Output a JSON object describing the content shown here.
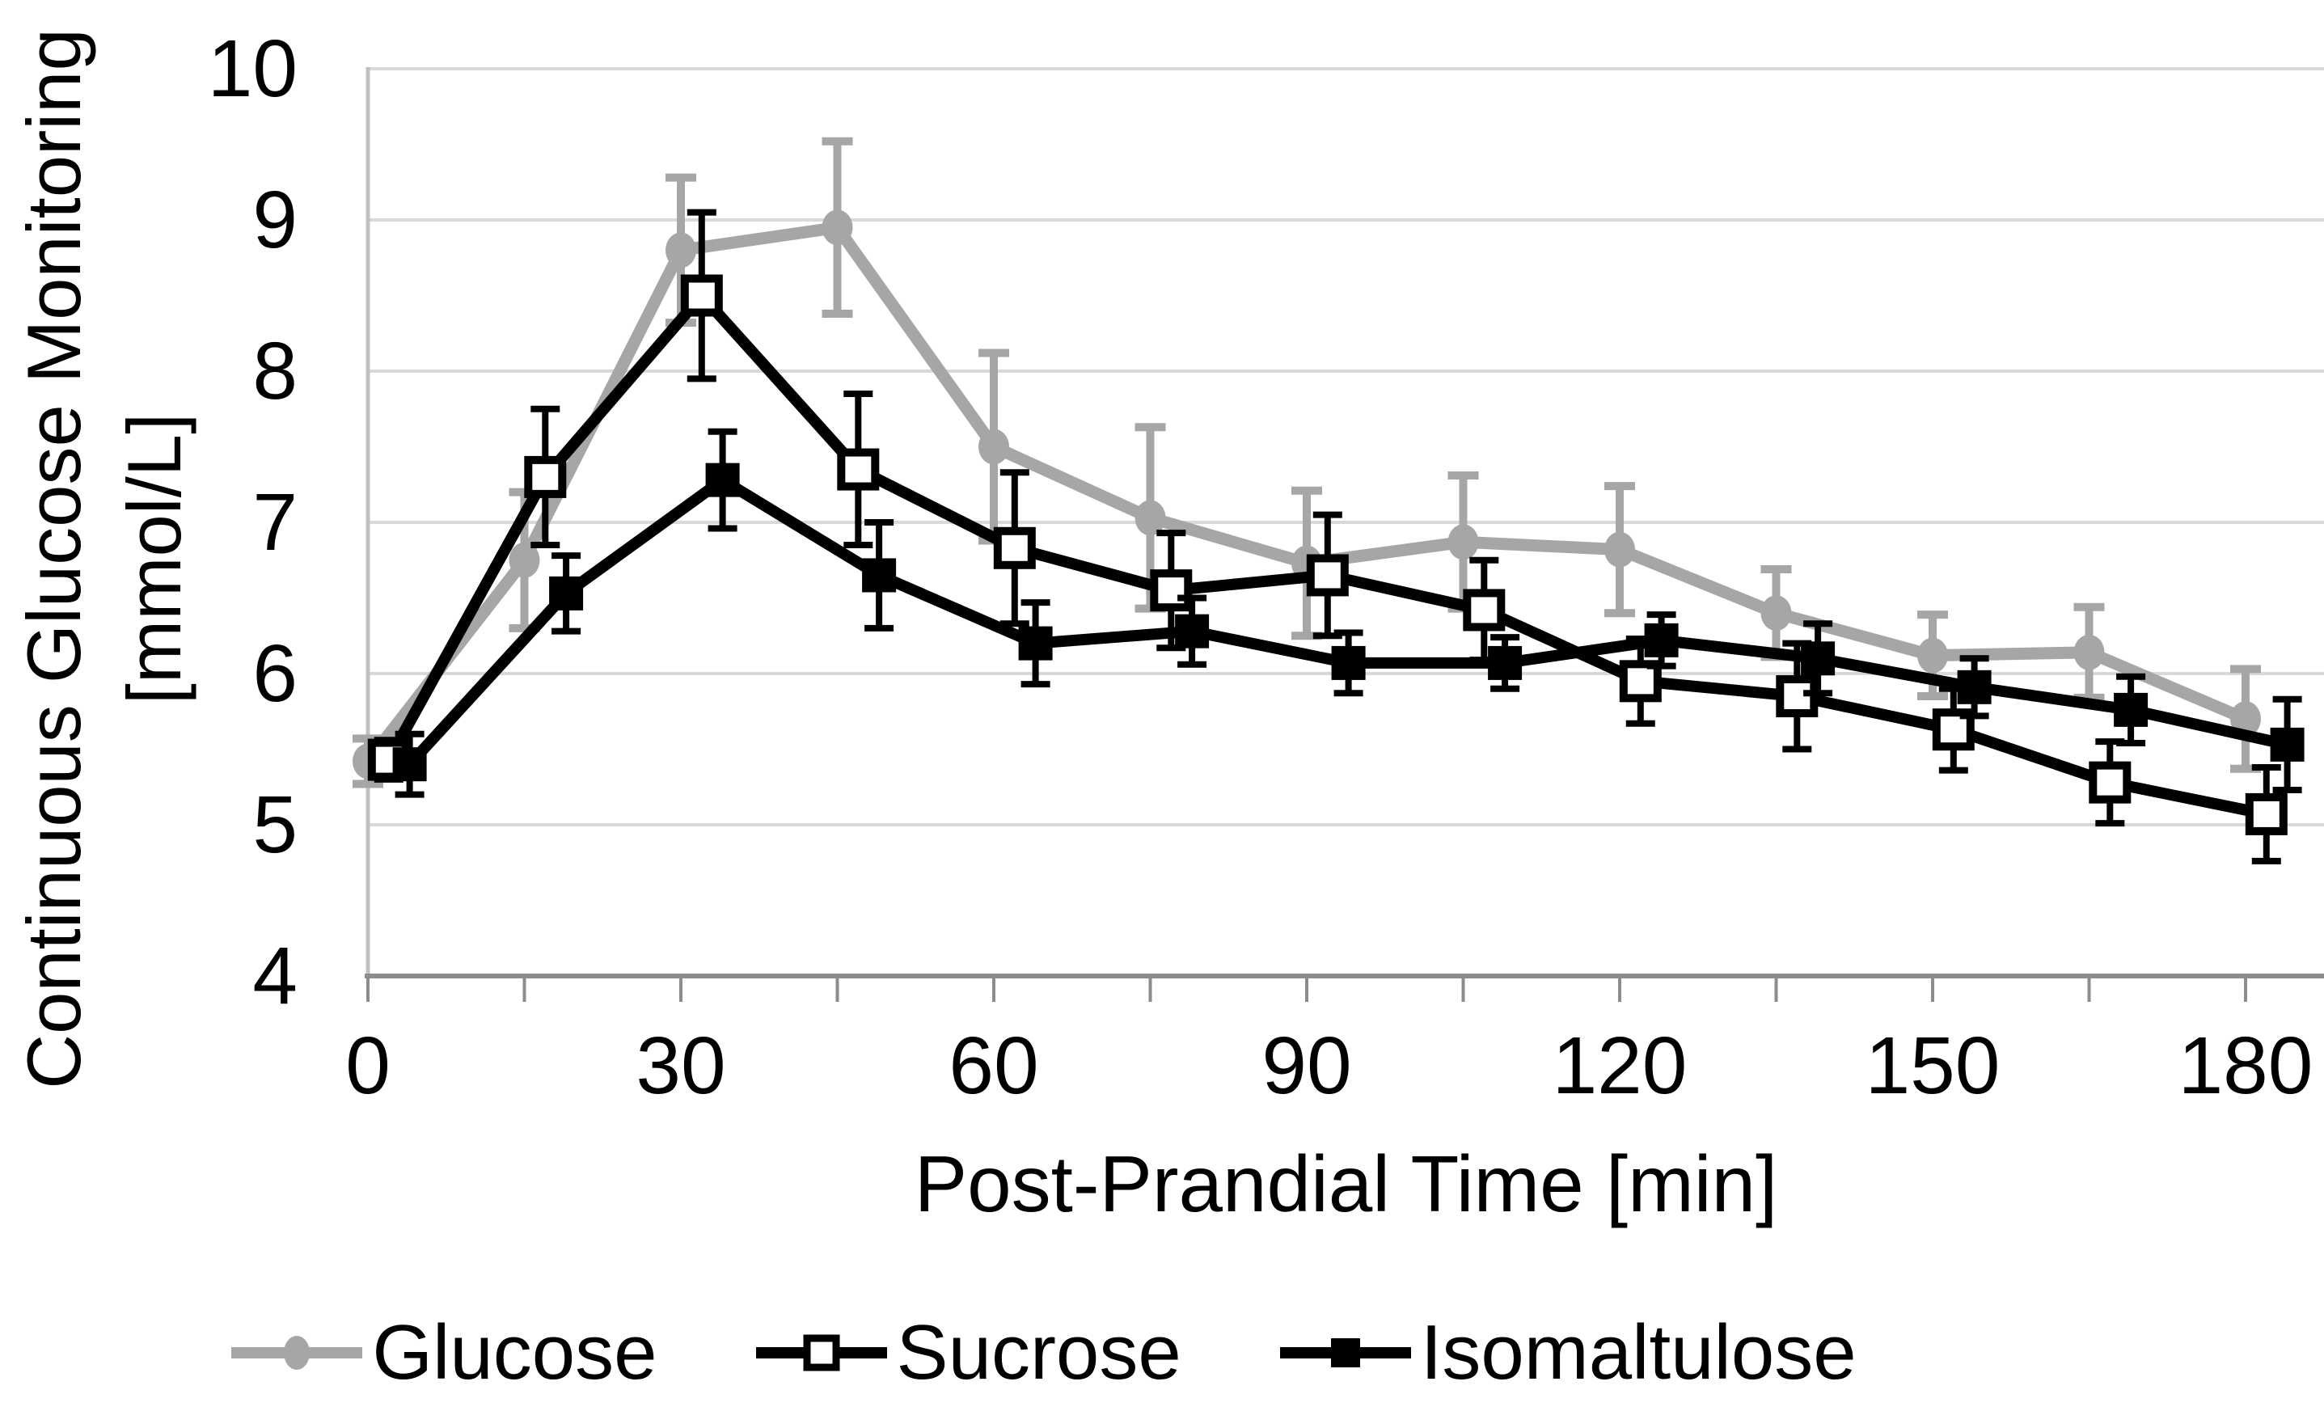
{
  "figure": {
    "kind": "scientific line chart with error bars",
    "background_color": "#ffffff"
  },
  "chart_data": {
    "type": "line",
    "title": "",
    "xlabel": "Post-Prandial Time [min]",
    "ylabel_line1": "Continuous Glucose Monitoring",
    "ylabel_line2": "[mmol/L]",
    "x_ticks": [
      0,
      30,
      60,
      90,
      120,
      150,
      180
    ],
    "x_minor_tick_step_min": 15,
    "y_ticks": [
      4,
      5,
      6,
      7,
      8,
      9,
      10
    ],
    "xlim": [
      0,
      187.5
    ],
    "ylim": [
      4,
      10
    ],
    "grid": "horizontal",
    "legend_position": "bottom",
    "grid_color": "#d9d9d9",
    "y_axis_color": "#c0c0c0",
    "x_axis_color": "#8c8c8c",
    "text_color": "#000000",
    "x": [
      0,
      15,
      30,
      45,
      60,
      75,
      90,
      105,
      120,
      135,
      150,
      165,
      180
    ],
    "series": [
      {
        "name": "Glucose",
        "color": "#a6a6a6",
        "marker": "circle",
        "line_width": 15,
        "x_offset_min": 0,
        "values": [
          5.42,
          6.75,
          8.8,
          8.95,
          7.5,
          7.03,
          6.73,
          6.87,
          6.82,
          6.4,
          6.12,
          6.14,
          5.7
        ],
        "errors": [
          0.15,
          0.45,
          0.48,
          0.57,
          0.62,
          0.6,
          0.48,
          0.44,
          0.42,
          0.29,
          0.27,
          0.3,
          0.33
        ]
      },
      {
        "name": "Sucrose",
        "color": "#000000",
        "marker": "open-square",
        "line_width": 14,
        "x_offset_min": 2,
        "values": [
          5.43,
          7.3,
          8.5,
          7.35,
          6.83,
          6.55,
          6.65,
          6.42,
          5.95,
          5.85,
          5.63,
          5.28,
          5.07
        ],
        "errors": [
          0.13,
          0.45,
          0.55,
          0.5,
          0.5,
          0.38,
          0.4,
          0.33,
          0.28,
          0.35,
          0.27,
          0.27,
          0.31
        ]
      },
      {
        "name": "Isomaltulose",
        "color": "#000000",
        "marker": "filled-square",
        "line_width": 14,
        "x_offset_min": 4,
        "values": [
          5.4,
          6.53,
          7.28,
          6.65,
          6.2,
          6.28,
          6.07,
          6.07,
          6.22,
          6.1,
          5.91,
          5.76,
          5.53
        ],
        "errors": [
          0.2,
          0.25,
          0.32,
          0.35,
          0.27,
          0.22,
          0.2,
          0.17,
          0.17,
          0.23,
          0.19,
          0.22,
          0.3
        ]
      }
    ]
  }
}
